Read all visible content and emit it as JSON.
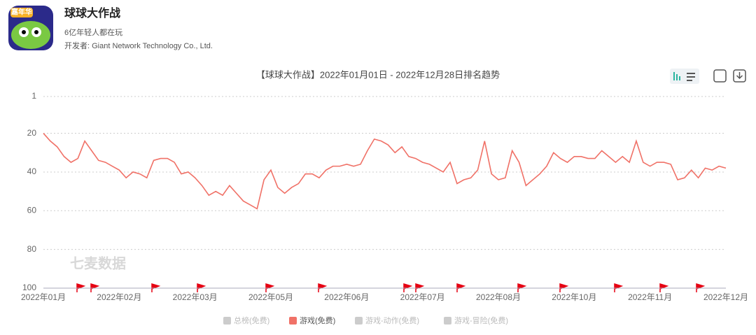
{
  "header": {
    "app_name": "球球大作战",
    "tagline": "6亿年轻人都在玩",
    "developer": "开发者: Giant Network Technology Co., Ltd.",
    "icon_badge": "嘉年华"
  },
  "watermark": "七麦数据",
  "chart_data": {
    "type": "line",
    "title": "【球球大作战】2022年01月01日 - 2022年12月28日排名趋势",
    "categories": [
      "2022年01月",
      null,
      null,
      null,
      null,
      null,
      null,
      null,
      null,
      null,
      null,
      "2022年02月",
      null,
      null,
      null,
      null,
      null,
      null,
      null,
      null,
      null,
      null,
      "2022年03月",
      null,
      null,
      null,
      null,
      null,
      null,
      null,
      null,
      null,
      null,
      "2022年05月",
      null,
      null,
      null,
      null,
      null,
      null,
      null,
      null,
      null,
      null,
      "2022年06月",
      null,
      null,
      null,
      null,
      null,
      null,
      null,
      null,
      null,
      null,
      "2022年07月",
      null,
      null,
      null,
      null,
      null,
      null,
      null,
      null,
      null,
      null,
      "2022年08月",
      null,
      null,
      null,
      null,
      null,
      null,
      null,
      null,
      null,
      null,
      "2022年10月",
      null,
      null,
      null,
      null,
      null,
      null,
      null,
      null,
      null,
      null,
      "2022年11月",
      null,
      null,
      null,
      null,
      null,
      null,
      null,
      null,
      null,
      null,
      "2022年12月"
    ],
    "series": [
      {
        "name": "游戏(免费)",
        "color": "#f07167",
        "values": [
          20,
          24,
          27,
          32,
          35,
          33,
          24,
          29,
          34,
          35,
          37,
          39,
          43,
          40,
          41,
          43,
          34,
          33,
          33,
          35,
          41,
          40,
          43,
          47,
          52,
          50,
          52,
          47,
          51,
          55,
          57,
          59,
          44,
          39,
          48,
          51,
          48,
          46,
          41,
          41,
          43,
          39,
          37,
          37,
          36,
          37,
          36,
          29,
          23,
          24,
          26,
          30,
          27,
          32,
          33,
          35,
          36,
          38,
          40,
          35,
          46,
          44,
          43,
          39,
          24,
          41,
          44,
          43,
          29,
          35,
          47,
          44,
          41,
          37,
          30,
          33,
          35,
          32,
          32,
          33,
          33,
          29,
          32,
          35,
          32,
          35,
          24,
          35,
          37,
          35,
          35,
          36,
          44,
          43,
          39,
          43,
          38,
          39,
          37,
          38
        ]
      }
    ],
    "legend": [
      {
        "name": "总榜(免费)",
        "color": "#cccccc"
      },
      {
        "name": "游戏(免费)",
        "color": "#f07167"
      },
      {
        "name": "游戏-动作(免费)",
        "color": "#cccccc"
      },
      {
        "name": "游戏-冒险(免费)",
        "color": "#cccccc"
      }
    ],
    "ylim": [
      1,
      100
    ],
    "yticks": [
      1,
      20,
      40,
      60,
      80,
      100
    ],
    "y_inverted": true,
    "grid": true
  }
}
